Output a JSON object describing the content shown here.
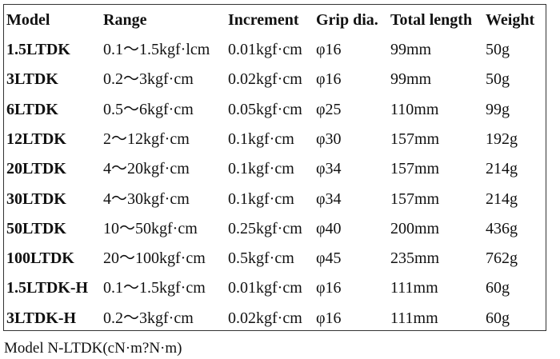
{
  "table": {
    "header": [
      "Model",
      "Range",
      "Increment",
      "Grip dia.",
      "Total length",
      "Weight"
    ],
    "rows": [
      [
        "1.5LTDK",
        "0.1～1.5kgf·lcm",
        "0.01kgf·cm",
        "φ16",
        "99mm",
        "50g"
      ],
      [
        "3LTDK",
        "0.2～3kgf·cm",
        "0.02kgf·cm",
        "φ16",
        "99mm",
        "50g"
      ],
      [
        "6LTDK",
        "0.5～6kgf·cm",
        "0.05kgf·cm",
        "φ25",
        "110mm",
        "99g"
      ],
      [
        "12LTDK",
        "2～12kgf·cm",
        "0.1kgf·cm",
        "φ30",
        "157mm",
        "192g"
      ],
      [
        "20LTDK",
        "4～20kgf·cm",
        "0.1kgf·cm",
        "φ34",
        "157mm",
        "214g"
      ],
      [
        "30LTDK",
        "4～30kgf·cm",
        "0.1kgf·cm",
        "φ34",
        "157mm",
        "214g"
      ],
      [
        "50LTDK",
        "10～50kgf·cm",
        "0.25kgf·cm",
        "φ40",
        "200mm",
        "436g"
      ],
      [
        "100LTDK",
        "20～100kgf·cm",
        "0.5kgf·cm",
        "φ45",
        "235mm",
        "762g"
      ],
      [
        "1.5LTDK-H",
        "0.1～1.5kgf·cm",
        "0.01kgf·cm",
        "φ16",
        "111mm",
        "60g"
      ],
      [
        "3LTDK-H",
        "0.2～3kgf·cm",
        "0.02kgf·cm",
        "φ16",
        "111mm",
        "60g"
      ]
    ]
  },
  "caption": "Model N-LTDK(cN·m?N·m)"
}
